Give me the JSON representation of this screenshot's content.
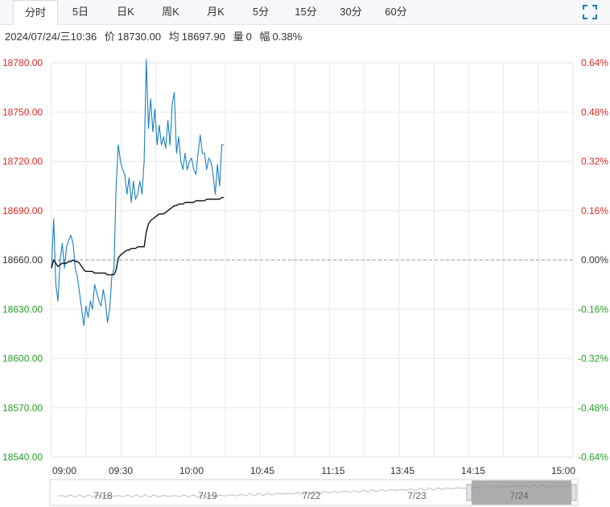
{
  "tabs": [
    {
      "label": "分时",
      "active": true
    },
    {
      "label": "5日",
      "active": false
    },
    {
      "label": "日K",
      "active": false
    },
    {
      "label": "周K",
      "active": false
    },
    {
      "label": "月K",
      "active": false
    },
    {
      "label": "5分",
      "active": false
    },
    {
      "label": "15分",
      "active": false
    },
    {
      "label": "30分",
      "active": false
    },
    {
      "label": "60分",
      "active": false
    }
  ],
  "expand_icon": "expand-icon",
  "info": {
    "datetime": "2024/07/24/三10:36",
    "price_label": "价",
    "price": "18730.00",
    "avg_label": "均",
    "avg": "18697.90",
    "vol_label": "量",
    "vol": "0",
    "amp_label": "幅",
    "amp": "0.38%"
  },
  "colors": {
    "up": "#e0261f",
    "down": "#23a123",
    "price_line": "#1a7fc1",
    "avg_line": "#111111",
    "base_dash": "#999999",
    "grid": "#e6e9ee"
  },
  "chart_data": {
    "type": "line",
    "base": 18660,
    "ylim": [
      18540,
      18780
    ],
    "y_ticks": [
      "18780.00",
      "18750.00",
      "18720.00",
      "18690.00",
      "18660.00",
      "18630.00",
      "18600.00",
      "18570.00",
      "18540.00"
    ],
    "pct_ticks": [
      "0.64%",
      "0.48%",
      "0.32%",
      "0.16%",
      "0.00%",
      "-0.16%",
      "-0.32%",
      "-0.48%",
      "-0.64%"
    ],
    "x_ticks": [
      "09:00",
      "09:30",
      "10:00",
      "10:45",
      "11:15",
      "13:45",
      "14:15",
      "15:00"
    ],
    "grid": true,
    "series": [
      {
        "values": [
          18655,
          18685,
          18645,
          18635,
          18660,
          18670,
          18655,
          18668,
          18672,
          18675,
          18670,
          18655,
          18650,
          18640,
          18630,
          18620,
          18632,
          18625,
          18635,
          18630,
          18645,
          18640,
          18635,
          18632,
          18642,
          18635,
          18622,
          18630,
          18650,
          18655,
          18705,
          18730,
          18720,
          18715,
          18712,
          18700,
          18710,
          18695,
          18708,
          18697,
          18700,
          18708,
          18700,
          18720,
          18782,
          18740,
          18758,
          18738,
          18752,
          18730,
          18742,
          18730,
          18735,
          18728,
          18745,
          18730,
          18755,
          18762,
          18725,
          18735,
          18720,
          18715,
          18725,
          18715,
          18720,
          18722,
          18715,
          18712,
          18725,
          18736,
          18725,
          18725,
          18715,
          18722,
          18720,
          18712,
          18700,
          18718,
          18705,
          18730,
          18730
        ]
      },
      {
        "values": [
          18655,
          18660,
          18658,
          18656,
          18657,
          18658,
          18658,
          18658,
          18659,
          18659,
          18660,
          18659,
          18659,
          18658,
          18656,
          18654,
          18653,
          18653,
          18653,
          18653,
          18652,
          18652,
          18652,
          18652,
          18652,
          18652,
          18651,
          18651,
          18651,
          18651,
          18654,
          18661,
          18663,
          18664,
          18665,
          18666,
          18666,
          18667,
          18667,
          18667,
          18668,
          18668,
          18668,
          18668,
          18677,
          18682,
          18684,
          18685,
          18686,
          18687,
          18688,
          18688,
          18688,
          18689,
          18690,
          18691,
          18692,
          18693,
          18693,
          18694,
          18694,
          18694,
          18695,
          18695,
          18695,
          18695,
          18695,
          18696,
          18696,
          18696,
          18696,
          18696,
          18697,
          18697,
          18697,
          18697,
          18697,
          18697,
          18697,
          18698,
          18698
        ]
      }
    ]
  },
  "navigator": {
    "dates": [
      "7/18",
      "7/19",
      "7/22",
      "7/23",
      "7/24"
    ]
  }
}
